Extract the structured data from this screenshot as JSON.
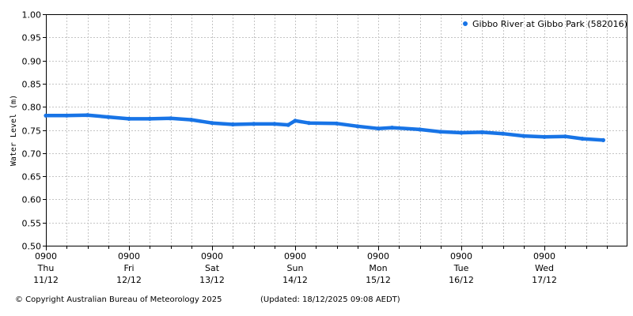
{
  "footer": {
    "copyright": "© Copyright Australian Bureau of Meteorology 2025",
    "updated": "(Updated: 18/12/2025 09:08 AEDT)"
  },
  "chart_data": {
    "type": "scatter",
    "ylabel": "Water Level (m)",
    "xlabel": "",
    "ylim": [
      0.5,
      1.0
    ],
    "yticks": [
      "0.50",
      "0.55",
      "0.60",
      "0.65",
      "0.70",
      "0.75",
      "0.80",
      "0.85",
      "0.90",
      "0.95",
      "1.00"
    ],
    "xlim": [
      "2025-12-11 09:00",
      "2025-12-18 09:00"
    ],
    "xticks": [
      {
        "time": "0900",
        "day": "Thu",
        "date": "11/12"
      },
      {
        "time": "0900",
        "day": "Fri",
        "date": "12/12"
      },
      {
        "time": "0900",
        "day": "Sat",
        "date": "13/12"
      },
      {
        "time": "0900",
        "day": "Sun",
        "date": "14/12"
      },
      {
        "time": "0900",
        "day": "Mon",
        "date": "15/12"
      },
      {
        "time": "0900",
        "day": "Tue",
        "date": "16/12"
      },
      {
        "time": "0900",
        "day": "Wed",
        "date": "17/12"
      }
    ],
    "grid": true,
    "legend_position": "top-right",
    "series": [
      {
        "name": "Gibbo River at Gibbo Park (582016)",
        "color": "#1874e6",
        "points": [
          {
            "x": "2025-12-11 09:00",
            "y": 0.781
          },
          {
            "x": "2025-12-11 15:00",
            "y": 0.781
          },
          {
            "x": "2025-12-11 21:00",
            "y": 0.782
          },
          {
            "x": "2025-12-12 03:00",
            "y": 0.778
          },
          {
            "x": "2025-12-12 09:00",
            "y": 0.774
          },
          {
            "x": "2025-12-12 15:00",
            "y": 0.774
          },
          {
            "x": "2025-12-12 21:00",
            "y": 0.775
          },
          {
            "x": "2025-12-13 03:00",
            "y": 0.772
          },
          {
            "x": "2025-12-13 09:00",
            "y": 0.765
          },
          {
            "x": "2025-12-13 15:00",
            "y": 0.762
          },
          {
            "x": "2025-12-13 21:00",
            "y": 0.763
          },
          {
            "x": "2025-12-14 03:00",
            "y": 0.763
          },
          {
            "x": "2025-12-14 07:00",
            "y": 0.761
          },
          {
            "x": "2025-12-14 09:00",
            "y": 0.77
          },
          {
            "x": "2025-12-14 13:00",
            "y": 0.765
          },
          {
            "x": "2025-12-14 21:00",
            "y": 0.764
          },
          {
            "x": "2025-12-15 03:00",
            "y": 0.758
          },
          {
            "x": "2025-12-15 09:00",
            "y": 0.753
          },
          {
            "x": "2025-12-15 13:00",
            "y": 0.755
          },
          {
            "x": "2025-12-15 21:00",
            "y": 0.751
          },
          {
            "x": "2025-12-16 03:00",
            "y": 0.746
          },
          {
            "x": "2025-12-16 09:00",
            "y": 0.744
          },
          {
            "x": "2025-12-16 15:00",
            "y": 0.745
          },
          {
            "x": "2025-12-16 21:00",
            "y": 0.742
          },
          {
            "x": "2025-12-17 03:00",
            "y": 0.737
          },
          {
            "x": "2025-12-17 09:00",
            "y": 0.735
          },
          {
            "x": "2025-12-17 15:00",
            "y": 0.736
          },
          {
            "x": "2025-12-17 20:00",
            "y": 0.731
          },
          {
            "x": "2025-12-18 02:00",
            "y": 0.728
          }
        ]
      }
    ]
  }
}
